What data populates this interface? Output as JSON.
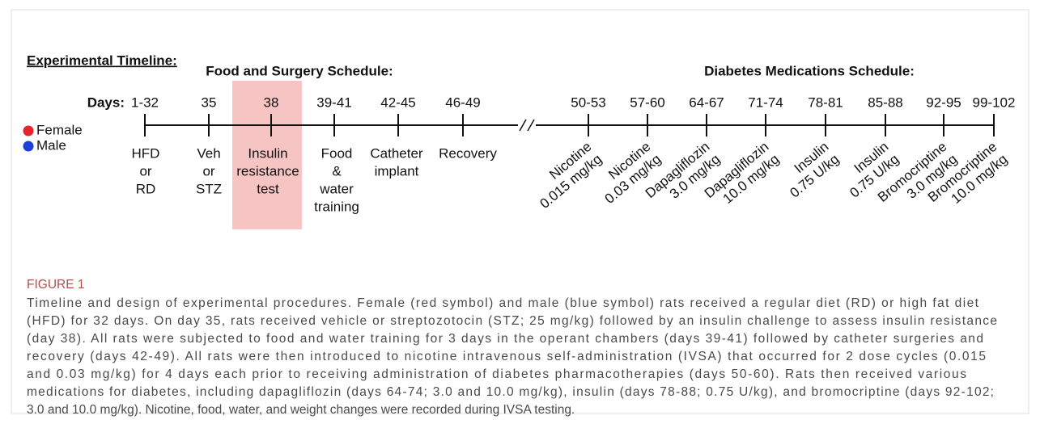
{
  "figure": {
    "heading": "Experimental Timeline:",
    "section_left": "Food and Surgery Schedule:",
    "section_right": "Diabetes Medications Schedule:",
    "days_label": "Days:",
    "legend": [
      {
        "name": "Female",
        "color": "#e8242b"
      },
      {
        "name": "Male",
        "color": "#1b3fd8"
      }
    ],
    "highlight_color": "#f7c4c4",
    "points": [
      {
        "day": "1-32",
        "labels": [
          "HFD",
          "or",
          "RD"
        ]
      },
      {
        "day": "35",
        "labels": [
          "Veh",
          "or",
          "STZ"
        ]
      },
      {
        "day": "38",
        "labels": [
          "Insulin",
          "resistance",
          "test"
        ]
      },
      {
        "day": "39-41",
        "labels": [
          "Food",
          "&",
          "water",
          "training"
        ]
      },
      {
        "day": "42-45",
        "labels": [
          "Catheter",
          "implant"
        ]
      },
      {
        "day": "46-49",
        "labels": [
          "Recovery"
        ]
      },
      {
        "day": "50-53",
        "labels": [
          "Nicotine",
          "0.015 mg/kg"
        ]
      },
      {
        "day": "57-60",
        "labels": [
          "Nicotine",
          "0.03 mg/kg"
        ]
      },
      {
        "day": "64-67",
        "labels": [
          "Dapagliflozin",
          "3.0 mg/kg"
        ]
      },
      {
        "day": "71-74",
        "labels": [
          "Dapagliflozin",
          "10.0 mg/kg"
        ]
      },
      {
        "day": "78-81",
        "labels": [
          "Insulin",
          "0.75 U/kg"
        ]
      },
      {
        "day": "85-88",
        "labels": [
          "Insulin",
          "0.75 U/kg"
        ]
      },
      {
        "day": "92-95",
        "labels": [
          "Bromocriptine",
          "3.0 mg/kg"
        ]
      },
      {
        "day": "99-102",
        "labels": [
          "Bromocriptine",
          "10.0 mg/kg"
        ]
      }
    ]
  },
  "caption": {
    "label": "FIGURE 1",
    "lines": [
      "Timeline and design of experimental procedures. Female (red symbol) and male (blue symbol) rats received a regular diet (RD) or high fat diet",
      "(HFD) for 32 days. On day 35, rats received vehicle or streptozotocin (STZ; 25 mg/kg) followed by an insulin challenge to assess insulin resistance",
      "(day 38). All rats were subjected to food and water training for 3 days in the operant chambers (days 39-41) followed by catheter surgeries and",
      "recovery (days 42-49). All rats were then introduced to nicotine intravenous self-administration (IVSA) that occurred for 2 dose cycles (0.015",
      "and 0.03 mg/kg) for 4 days each prior to receiving administration of diabetes pharmacotherapies (days 50-60). Rats then received various",
      "medications for diabetes, including dapagliflozin (days 64-74; 3.0 and 10.0 mg/kg), insulin (days 78-88; 0.75 U/kg), and bromocriptine (days 92-102;",
      "3.0 and 10.0 mg/kg). Nicotine, food, water, and weight changes were recorded during IVSA testing."
    ]
  }
}
